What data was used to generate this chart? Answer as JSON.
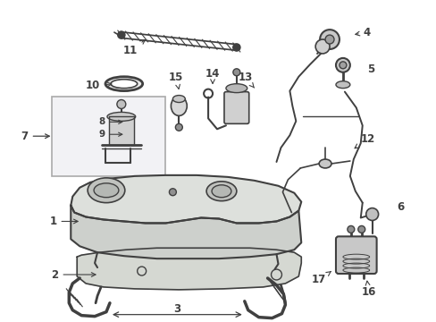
{
  "bg_color": "#ffffff",
  "lc": "#404040",
  "figsize": [
    4.89,
    3.6
  ],
  "dpi": 100
}
